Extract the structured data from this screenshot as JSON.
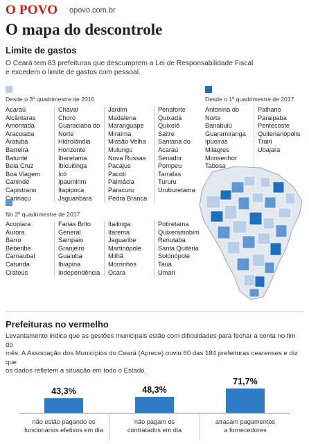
{
  "header": {
    "brand": "O POVO",
    "site": "opovo.com.br"
  },
  "title": "O mapa do descontrole",
  "subtitle": "Limite de gastos",
  "intro_line1": "O Ceará tem 83 prefeituras que descumprem a Lei de Responsabilidade Fiscal",
  "intro_line2": "e excedem o limite de gastos com pessoal.",
  "colors": {
    "light": "#b9cfe8",
    "mid": "#5e97d4",
    "dark": "#1f6fbe",
    "bar": "#2e7cc6",
    "brand": "#d11a1a"
  },
  "groups": {
    "q3_2016": {
      "label": "Desde o 3º quadrimestre de 2016",
      "col1": [
        "Acaraú",
        "Alcântaras",
        "Amontada",
        "Aracoiaba",
        "Aratuba",
        "Barreira",
        "Baturité",
        "Bela Cruz",
        "Boa Viagem",
        "Canindé",
        "Capistrano",
        "Caririaçu"
      ],
      "col2": [
        "Chaval",
        "Choró",
        "Guaraciaba do",
        "Norte",
        "Hidrolândia",
        "Horizonte",
        "Ibaretama",
        "Ibicuitinga",
        "Icó",
        "Ipaumirim",
        "Itapipoca",
        "Jaguaribara"
      ],
      "col3": [
        "Jardim",
        "Madalena",
        "Maranguape",
        "Miraíma",
        "Missão Velha",
        "Mulungu",
        "Nova Russas",
        "Pacajus",
        "Pacoti",
        "Palmácia",
        "Paracuru",
        "Pedra Branca"
      ],
      "col4": [
        "Penaforte",
        "Quixadá",
        "Quixelô",
        "Saitre",
        "Santana do",
        "Acaraú",
        "Senador",
        "Pompeu",
        "Tarrafas",
        "Tururu",
        "Uruburetama"
      ]
    },
    "q1_2017": {
      "label": "Desde o 1º quadrimestre de 2017",
      "col1": [
        "Antonina do",
        "Norte",
        "Banabuiú",
        "Guaramiranga",
        "Ipueiras",
        "Milagres",
        "Monsenhor",
        "Tabosa"
      ],
      "col2": [
        "Palhano",
        "Paraipaba",
        "Pentecoste",
        "Quiterianópolis",
        "Trairi",
        "Ubajara"
      ]
    },
    "q2_2017": {
      "label": "No 2º quadrimestre de 2017",
      "col1": [
        "Acopiara",
        "Aurora",
        "Barro",
        "Beberibe",
        "Carnaubal",
        "Catunda",
        "Crateús"
      ],
      "col2": [
        "Farias Brito",
        "General",
        "Sampaio",
        "Granjeiro",
        "Guaiuba",
        "Ibiapina",
        "Independência"
      ],
      "col3": [
        "Itaitinga",
        "Itarema",
        "Jaguaribe",
        "Martinópole",
        "Milhã",
        "Morrinhos",
        "Ocara"
      ],
      "col4": [
        "Potiretama",
        "Quixeramobim",
        "Reriutaba",
        "Santa Quitéria",
        "Solonópole",
        "Tauá",
        "Umari"
      ]
    }
  },
  "section2": {
    "title": "Prefeituras no vermelho",
    "line1": "Levantamento indica que as gestões municipais estão com dificuldades para fechar a conta no fim do",
    "line2": "mês. A Associação dos Municípios do Ceará (Aprece) ouviu 60 das 184 prefeituras cearenses e diz que",
    "line3": "os dados refletem a situação em todo o Estado."
  },
  "stats": [
    {
      "pct_label": "43,3%",
      "value": 43.3,
      "line1": "não estão pagando os",
      "line2": "funcionários efetivos em dia"
    },
    {
      "pct_label": "48,3%",
      "value": 48.3,
      "line1": "não pagam os",
      "line2": "contratados em dia"
    },
    {
      "pct_label": "71,7%",
      "value": 71.7,
      "line1": "atrasam pagamentos",
      "line2": "a fornecedores"
    }
  ]
}
